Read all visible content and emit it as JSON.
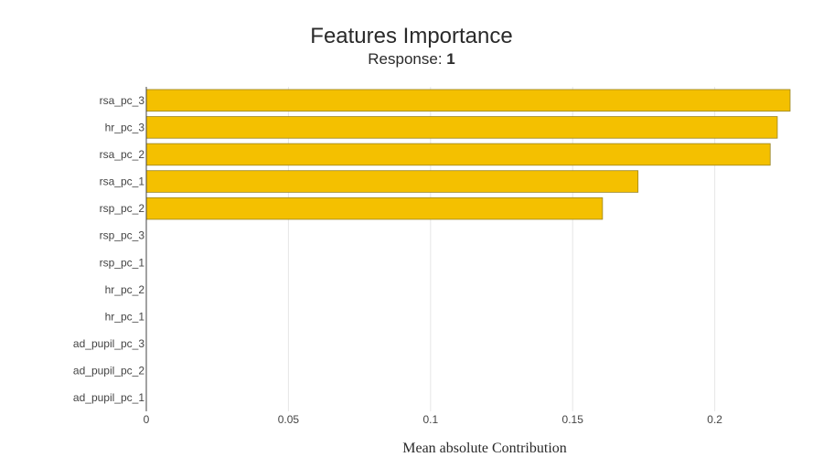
{
  "chart_data": {
    "type": "bar",
    "orientation": "horizontal",
    "title": "Features Importance",
    "subtitle_prefix": "Response: ",
    "subtitle_value": "1",
    "xlabel": "Mean absolute Contribution",
    "ylabel": "",
    "xlim": [
      0,
      0.2265
    ],
    "xticks": [
      0,
      0.05,
      0.1,
      0.15,
      0.2
    ],
    "xtick_labels": [
      "0",
      "0.05",
      "0.1",
      "0.15",
      "0.2"
    ],
    "grid": true,
    "bar_color": "#f4c000",
    "bar_edge_color": "#9a8420",
    "categories": [
      "rsa_pc_3",
      "hr_pc_3",
      "rsa_pc_2",
      "rsa_pc_1",
      "rsp_pc_2",
      "rsp_pc_3",
      "rsp_pc_1",
      "hr_pc_2",
      "hr_pc_1",
      "ad_pupil_pc_3",
      "ad_pupil_pc_2",
      "ad_pupil_pc_1"
    ],
    "values": [
      0.2265,
      0.222,
      0.2195,
      0.173,
      0.1605,
      0,
      0,
      0,
      0,
      0,
      0,
      0
    ]
  }
}
